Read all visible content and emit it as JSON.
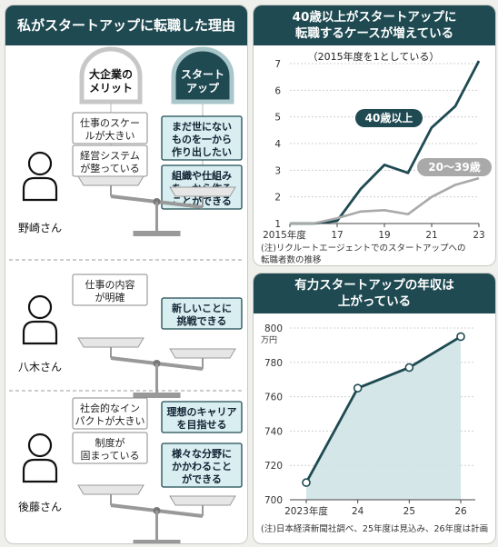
{
  "left_panel": {
    "title": "私がスタートアップに転職した理由",
    "header_big": [
      "大企業の",
      "メリット"
    ],
    "header_startup": [
      "スタート",
      "アップ"
    ],
    "people": [
      {
        "name": "野崎さん",
        "big_merits": [
          [
            "仕事のスケー",
            "ルが大きい"
          ],
          [
            "経営システム",
            "が整っている"
          ]
        ],
        "startup_merits": [
          [
            "まだ世にない",
            "ものを一から",
            "作り出したい"
          ],
          [
            "組織や仕組み",
            "を一から作る",
            "ことができる"
          ]
        ]
      },
      {
        "name": "八木さん",
        "big_merits": [
          [
            "仕事の内容",
            "が明確"
          ]
        ],
        "startup_merits": [
          [
            "新しいことに",
            "挑戦できる"
          ]
        ]
      },
      {
        "name": "後藤さん",
        "big_merits": [
          [
            "社会的なイン",
            "パクトが大きい"
          ],
          [
            "制度が",
            "固まっている"
          ]
        ],
        "startup_merits": [
          [
            "理想のキャリア",
            "を目指せる"
          ],
          [
            "様々な分野に",
            "かかわること",
            "ができる"
          ]
        ]
      }
    ]
  },
  "chart_data": [
    {
      "type": "line",
      "title": [
        "40歳以上がスタートアップに",
        "転職するケースが増えている"
      ],
      "subtitle": "（2015年度を1としている）",
      "x": [
        2015,
        2016,
        2017,
        2018,
        2019,
        2020,
        2021,
        2022,
        2023
      ],
      "xtick_labels": [
        "2015年度",
        "17",
        "19",
        "21",
        "23"
      ],
      "xtick_values": [
        2015,
        2017,
        2019,
        2021,
        2023
      ],
      "ylim": [
        1,
        7
      ],
      "yticks": [
        1,
        2,
        3,
        4,
        5,
        6,
        7
      ],
      "series": [
        {
          "name": "40歳以上",
          "values": [
            1.0,
            1.0,
            1.1,
            2.3,
            3.2,
            2.9,
            4.6,
            5.4,
            7.1
          ],
          "color": "#1f4a52"
        },
        {
          "name": "20～39歳",
          "values": [
            1.0,
            1.0,
            1.2,
            1.45,
            1.5,
            1.35,
            2.0,
            2.45,
            2.7
          ],
          "color": "#a9a9a9"
        }
      ],
      "note": [
        "(注)リクルートエージェントでのスタートアップへの",
        "転職者数の推移"
      ]
    },
    {
      "type": "area",
      "title": [
        "有力スタートアップの年収は",
        "上がっている"
      ],
      "x_labels": [
        "2023年度",
        "24",
        "25",
        "26"
      ],
      "values": [
        710,
        765,
        777,
        795
      ],
      "ylim": [
        700,
        800
      ],
      "yticks": [
        700,
        720,
        740,
        760,
        780,
        800
      ],
      "yunit": "万円",
      "color": "#1f4a52",
      "note": "(注)日本経済新聞社調べ、25年度は見込み、26年度は計画"
    }
  ]
}
